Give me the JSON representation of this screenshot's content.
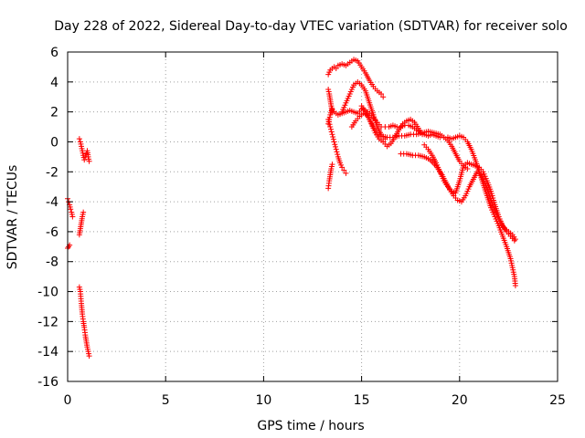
{
  "chart_data": {
    "type": "scatter",
    "title": "Day 228 of 2022, Sidereal Day-to-day VTEC variation (SDTVAR) for receiver solo",
    "xlabel": "GPS time / hours",
    "ylabel": "SDTVAR / TECUs",
    "xlim": [
      0,
      25
    ],
    "ylim": [
      -16,
      6
    ],
    "xticks": [
      0,
      5,
      10,
      15,
      20,
      25
    ],
    "yticks": [
      -16,
      -14,
      -12,
      -10,
      -8,
      -6,
      -4,
      -2,
      0,
      2,
      4,
      6
    ],
    "grid": true,
    "marker": "+",
    "series_color": "#ff0000",
    "segments": [
      {
        "x": [
          0.0,
          0.05,
          0.1
        ],
        "y": [
          -7.1,
          -7.0,
          -6.9
        ]
      },
      {
        "x": [
          0.0,
          0.05,
          0.1,
          0.15,
          0.2,
          0.25
        ],
        "y": [
          -3.8,
          -4.0,
          -4.2,
          -4.5,
          -4.7,
          -5.0
        ]
      },
      {
        "x": [
          0.6,
          0.65,
          0.7,
          0.75,
          0.8
        ],
        "y": [
          -6.2,
          -5.8,
          -5.4,
          -5.0,
          -4.7
        ]
      },
      {
        "x": [
          0.6,
          0.65,
          0.7,
          0.75,
          0.8,
          0.85,
          0.9,
          0.95,
          1.0,
          1.05,
          1.1
        ],
        "y": [
          -9.7,
          -10.0,
          -10.8,
          -11.5,
          -12.0,
          -12.4,
          -12.9,
          -13.3,
          -13.7,
          -14.0,
          -14.3
        ]
      },
      {
        "x": [
          0.6,
          0.65,
          0.7,
          0.75,
          0.8,
          0.85,
          0.9,
          0.95,
          1.0,
          1.05,
          1.1
        ],
        "y": [
          0.2,
          0.0,
          -0.3,
          -0.6,
          -0.9,
          -1.2,
          -1.0,
          -0.8,
          -0.6,
          -1.0,
          -1.3
        ]
      },
      {
        "x": [
          13.3,
          13.35,
          13.4,
          13.45,
          13.5
        ],
        "y": [
          -3.1,
          -2.6,
          -2.2,
          -1.8,
          -1.5
        ]
      },
      {
        "x": [
          13.3,
          13.4,
          13.5,
          13.6,
          13.7,
          13.8,
          14.0,
          14.2,
          14.4,
          14.6,
          14.8,
          15.0,
          15.2,
          15.4,
          15.6,
          15.8,
          16.0,
          16.1
        ],
        "y": [
          4.5,
          4.8,
          4.9,
          5.0,
          4.9,
          5.1,
          5.2,
          5.1,
          5.3,
          5.5,
          5.4,
          5.0,
          4.6,
          4.1,
          3.7,
          3.4,
          3.2,
          3.0
        ]
      },
      {
        "x": [
          13.3,
          13.35,
          13.4,
          13.45,
          13.5
        ],
        "y": [
          3.5,
          3.2,
          2.8,
          2.4,
          2.0
        ]
      },
      {
        "x": [
          13.3,
          13.4,
          13.5,
          13.6,
          13.8,
          14.0,
          14.2,
          14.4,
          14.6,
          14.8,
          15.0,
          15.2,
          15.4,
          15.6,
          15.8,
          16.0,
          16.2,
          16.4,
          16.6,
          16.8,
          17.0,
          17.2,
          17.4,
          17.6,
          17.8,
          18.0,
          18.2,
          18.4,
          18.6,
          18.8,
          19.0,
          19.2,
          19.4,
          19.6,
          19.8,
          20.0,
          20.2,
          20.4,
          20.6,
          20.8,
          21.0,
          21.2,
          21.4,
          21.6,
          21.8,
          22.0,
          22.2,
          22.4,
          22.6,
          22.7,
          22.8,
          22.85
        ],
        "y": [
          1.2,
          1.8,
          2.2,
          2.0,
          1.8,
          1.9,
          2.0,
          2.1,
          2.0,
          1.9,
          2.2,
          2.1,
          1.9,
          1.6,
          1.3,
          1.0,
          1.0,
          1.0,
          1.1,
          1.0,
          1.0,
          1.1,
          1.1,
          1.0,
          0.8,
          0.6,
          0.5,
          0.4,
          0.5,
          0.4,
          0.3,
          0.3,
          0.3,
          0.2,
          0.3,
          0.4,
          0.3,
          0.0,
          -0.5,
          -1.2,
          -2.0,
          -2.8,
          -3.6,
          -4.4,
          -5.0,
          -5.6,
          -6.3,
          -7.0,
          -7.8,
          -8.4,
          -9.0,
          -9.6
        ]
      },
      {
        "x": [
          13.3,
          13.4,
          13.5,
          13.6,
          13.7,
          13.8,
          13.9,
          14.0,
          14.1,
          14.2
        ],
        "y": [
          1.5,
          1.0,
          0.5,
          0.0,
          -0.5,
          -1.0,
          -1.4,
          -1.7,
          -1.9,
          -2.1
        ]
      },
      {
        "x": [
          14.0,
          14.2,
          14.4,
          14.6,
          14.8,
          15.0,
          15.2,
          15.4,
          15.6,
          15.8,
          16.0,
          16.2
        ],
        "y": [
          2.0,
          2.6,
          3.2,
          3.8,
          4.0,
          3.8,
          3.4,
          2.6,
          1.8,
          1.0,
          0.5,
          0.2
        ]
      },
      {
        "x": [
          14.5,
          14.7,
          14.9,
          15.1,
          15.3,
          15.5,
          15.7,
          15.9,
          16.1,
          16.3,
          16.5,
          16.7,
          16.9,
          17.1,
          17.3,
          17.5,
          17.7,
          17.9,
          18.1
        ],
        "y": [
          1.0,
          1.4,
          1.7,
          1.9,
          1.8,
          1.2,
          0.6,
          0.2,
          0.0,
          -0.3,
          -0.1,
          0.3,
          0.8,
          1.2,
          1.4,
          1.5,
          1.3,
          0.9,
          0.5
        ]
      },
      {
        "x": [
          15.0,
          15.2,
          15.4,
          15.6,
          15.8,
          16.0,
          16.3,
          16.6,
          16.9,
          17.2,
          17.5,
          17.8,
          18.1,
          18.4,
          18.7,
          19.0,
          19.2,
          19.4,
          19.6,
          19.8,
          20.0,
          20.2,
          20.4
        ],
        "y": [
          2.4,
          2.0,
          1.5,
          1.0,
          0.6,
          0.4,
          0.3,
          0.3,
          0.4,
          0.4,
          0.5,
          0.5,
          0.6,
          0.7,
          0.6,
          0.5,
          0.3,
          0.1,
          -0.3,
          -0.8,
          -1.3,
          -1.6,
          -1.8
        ]
      },
      {
        "x": [
          17.0,
          17.3,
          17.6,
          17.9,
          18.2,
          18.5,
          18.8,
          19.1,
          19.3,
          19.5,
          19.7,
          19.9,
          20.1,
          20.3,
          20.5,
          20.7,
          20.9,
          21.1,
          21.3,
          21.5,
          21.7,
          21.9,
          22.1,
          22.3,
          22.5,
          22.7,
          22.85
        ],
        "y": [
          -0.8,
          -0.8,
          -0.9,
          -0.9,
          -1.0,
          -1.2,
          -1.6,
          -2.2,
          -2.7,
          -3.2,
          -3.6,
          -3.9,
          -4.0,
          -3.6,
          -3.0,
          -2.5,
          -2.0,
          -2.2,
          -2.8,
          -3.5,
          -4.2,
          -4.9,
          -5.4,
          -5.8,
          -6.0,
          -6.2,
          -6.5
        ]
      },
      {
        "x": [
          18.2,
          18.4,
          18.6,
          18.8,
          19.0,
          19.2,
          19.4,
          19.6,
          19.8,
          20.0,
          20.2,
          20.4,
          20.6,
          20.8,
          21.0,
          21.2,
          21.4,
          21.6,
          21.8,
          22.0,
          22.2,
          22.4,
          22.6,
          22.8
        ],
        "y": [
          -0.2,
          -0.5,
          -0.9,
          -1.4,
          -2.0,
          -2.6,
          -3.0,
          -3.3,
          -3.4,
          -2.6,
          -1.6,
          -1.4,
          -1.5,
          -1.6,
          -1.7,
          -2.0,
          -2.6,
          -3.3,
          -4.2,
          -5.0,
          -5.6,
          -6.0,
          -6.3,
          -6.6
        ]
      }
    ]
  }
}
